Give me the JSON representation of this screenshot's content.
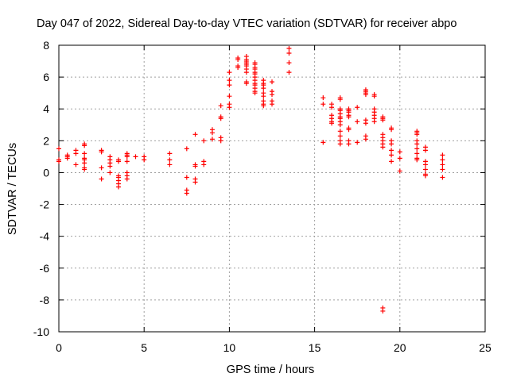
{
  "chart_data": {
    "type": "scatter",
    "title": "Day 047 of 2022, Sidereal Day-to-day VTEC variation (SDTVAR) for receiver abpo",
    "xlabel": "GPS time / hours",
    "ylabel": "SDTVAR / TECUs",
    "xlim": [
      0,
      25
    ],
    "ylim": [
      -10,
      8
    ],
    "xticks": [
      0,
      5,
      10,
      15,
      20,
      25
    ],
    "yticks": [
      -10,
      -8,
      -6,
      -4,
      -2,
      0,
      2,
      4,
      6,
      8
    ],
    "grid": true,
    "marker": "plus",
    "color": "#ff0000",
    "series": [
      {
        "name": "SDTVAR",
        "points": [
          [
            0.0,
            0.7
          ],
          [
            0.0,
            0.8
          ],
          [
            0.0,
            1.5
          ],
          [
            0.5,
            0.9
          ],
          [
            0.5,
            1.1
          ],
          [
            0.5,
            1.0
          ],
          [
            1.0,
            1.2
          ],
          [
            1.0,
            1.4
          ],
          [
            1.0,
            0.5
          ],
          [
            1.5,
            1.8
          ],
          [
            1.5,
            1.7
          ],
          [
            1.5,
            1.2
          ],
          [
            1.5,
            0.9
          ],
          [
            1.5,
            0.8
          ],
          [
            1.5,
            0.6
          ],
          [
            1.5,
            0.3
          ],
          [
            1.5,
            0.2
          ],
          [
            2.5,
            1.4
          ],
          [
            2.5,
            1.3
          ],
          [
            2.5,
            0.3
          ],
          [
            2.5,
            -0.4
          ],
          [
            3.0,
            1.0
          ],
          [
            3.0,
            0.8
          ],
          [
            3.0,
            0.6
          ],
          [
            3.0,
            0.4
          ],
          [
            3.0,
            0.0
          ],
          [
            3.5,
            0.8
          ],
          [
            3.5,
            0.7
          ],
          [
            3.5,
            -0.2
          ],
          [
            3.5,
            -0.3
          ],
          [
            3.5,
            -0.5
          ],
          [
            3.5,
            -0.7
          ],
          [
            3.5,
            -0.9
          ],
          [
            4.0,
            1.2
          ],
          [
            4.0,
            1.1
          ],
          [
            4.0,
            1.0
          ],
          [
            4.0,
            0.7
          ],
          [
            4.0,
            0.0
          ],
          [
            4.0,
            -0.2
          ],
          [
            4.0,
            -0.4
          ],
          [
            4.5,
            1.0
          ],
          [
            5.0,
            1.0
          ],
          [
            5.0,
            0.8
          ],
          [
            6.5,
            1.2
          ],
          [
            6.5,
            0.8
          ],
          [
            6.5,
            0.5
          ],
          [
            7.5,
            1.5
          ],
          [
            7.5,
            -0.3
          ],
          [
            7.5,
            -1.1
          ],
          [
            7.5,
            -1.3
          ],
          [
            8.0,
            2.4
          ],
          [
            8.0,
            0.5
          ],
          [
            8.0,
            0.4
          ],
          [
            8.0,
            -0.4
          ],
          [
            8.0,
            -0.6
          ],
          [
            8.5,
            2.0
          ],
          [
            8.5,
            0.7
          ],
          [
            8.5,
            0.5
          ],
          [
            9.0,
            2.7
          ],
          [
            9.0,
            2.5
          ],
          [
            9.0,
            2.1
          ],
          [
            9.5,
            4.2
          ],
          [
            9.5,
            3.5
          ],
          [
            9.5,
            3.4
          ],
          [
            9.5,
            2.2
          ],
          [
            9.5,
            2.0
          ],
          [
            10.0,
            6.3
          ],
          [
            10.0,
            5.8
          ],
          [
            10.0,
            5.5
          ],
          [
            10.0,
            4.8
          ],
          [
            10.0,
            4.3
          ],
          [
            10.0,
            4.1
          ],
          [
            10.5,
            7.2
          ],
          [
            10.5,
            7.1
          ],
          [
            10.5,
            6.7
          ],
          [
            10.5,
            6.6
          ],
          [
            11.0,
            7.3
          ],
          [
            11.0,
            7.1
          ],
          [
            11.0,
            7.0
          ],
          [
            11.0,
            6.9
          ],
          [
            11.0,
            6.8
          ],
          [
            11.0,
            6.7
          ],
          [
            11.0,
            6.5
          ],
          [
            11.0,
            6.3
          ],
          [
            11.0,
            5.7
          ],
          [
            11.0,
            5.6
          ],
          [
            11.5,
            6.9
          ],
          [
            11.5,
            6.8
          ],
          [
            11.5,
            6.6
          ],
          [
            11.5,
            6.5
          ],
          [
            11.5,
            6.3
          ],
          [
            11.5,
            6.2
          ],
          [
            11.5,
            6.0
          ],
          [
            11.5,
            5.8
          ],
          [
            11.5,
            5.6
          ],
          [
            11.5,
            5.5
          ],
          [
            11.5,
            5.3
          ],
          [
            11.5,
            5.1
          ],
          [
            11.5,
            5.0
          ],
          [
            12.0,
            5.8
          ],
          [
            12.0,
            5.6
          ],
          [
            12.0,
            5.5
          ],
          [
            12.0,
            5.3
          ],
          [
            12.0,
            5.0
          ],
          [
            12.0,
            4.8
          ],
          [
            12.0,
            4.5
          ],
          [
            12.0,
            4.3
          ],
          [
            12.0,
            4.2
          ],
          [
            12.5,
            5.7
          ],
          [
            12.5,
            5.1
          ],
          [
            12.5,
            4.9
          ],
          [
            12.5,
            4.5
          ],
          [
            12.5,
            4.3
          ],
          [
            13.5,
            7.8
          ],
          [
            13.5,
            7.5
          ],
          [
            13.5,
            6.9
          ],
          [
            13.5,
            6.3
          ],
          [
            15.5,
            4.7
          ],
          [
            15.5,
            4.3
          ],
          [
            15.5,
            1.9
          ],
          [
            16.0,
            4.3
          ],
          [
            16.0,
            4.1
          ],
          [
            16.0,
            3.6
          ],
          [
            16.0,
            3.4
          ],
          [
            16.0,
            3.2
          ],
          [
            16.0,
            3.1
          ],
          [
            16.5,
            4.7
          ],
          [
            16.5,
            4.6
          ],
          [
            16.5,
            4.0
          ],
          [
            16.5,
            3.9
          ],
          [
            16.5,
            3.7
          ],
          [
            16.5,
            3.5
          ],
          [
            16.5,
            3.4
          ],
          [
            16.5,
            3.2
          ],
          [
            16.5,
            3.0
          ],
          [
            16.5,
            2.6
          ],
          [
            16.5,
            2.3
          ],
          [
            16.5,
            2.0
          ],
          [
            16.5,
            1.8
          ],
          [
            17.0,
            4.0
          ],
          [
            17.0,
            3.9
          ],
          [
            17.0,
            3.8
          ],
          [
            17.0,
            3.6
          ],
          [
            17.0,
            3.5
          ],
          [
            17.0,
            2.8
          ],
          [
            17.0,
            2.7
          ],
          [
            17.0,
            2.0
          ],
          [
            17.0,
            1.8
          ],
          [
            17.5,
            4.1
          ],
          [
            17.5,
            3.2
          ],
          [
            17.5,
            1.9
          ],
          [
            18.0,
            5.2
          ],
          [
            18.0,
            5.1
          ],
          [
            18.0,
            5.0
          ],
          [
            18.0,
            4.9
          ],
          [
            18.0,
            3.3
          ],
          [
            18.0,
            3.1
          ],
          [
            18.0,
            2.3
          ],
          [
            18.0,
            2.1
          ],
          [
            18.5,
            4.9
          ],
          [
            18.5,
            4.8
          ],
          [
            18.5,
            4.0
          ],
          [
            18.5,
            3.8
          ],
          [
            18.5,
            3.6
          ],
          [
            18.5,
            3.4
          ],
          [
            18.5,
            3.2
          ],
          [
            19.0,
            3.5
          ],
          [
            19.0,
            3.4
          ],
          [
            19.0,
            3.3
          ],
          [
            19.0,
            2.4
          ],
          [
            19.0,
            2.2
          ],
          [
            19.0,
            2.0
          ],
          [
            19.0,
            1.8
          ],
          [
            19.0,
            1.6
          ],
          [
            19.0,
            -8.5
          ],
          [
            19.0,
            -8.7
          ],
          [
            19.5,
            2.8
          ],
          [
            19.5,
            2.7
          ],
          [
            19.5,
            2.0
          ],
          [
            19.5,
            1.8
          ],
          [
            19.5,
            1.4
          ],
          [
            19.5,
            1.1
          ],
          [
            19.5,
            0.7
          ],
          [
            20.0,
            1.3
          ],
          [
            20.0,
            0.9
          ],
          [
            20.0,
            0.1
          ],
          [
            21.0,
            2.6
          ],
          [
            21.0,
            2.5
          ],
          [
            21.0,
            2.4
          ],
          [
            21.0,
            2.0
          ],
          [
            21.0,
            1.8
          ],
          [
            21.0,
            1.5
          ],
          [
            21.0,
            1.2
          ],
          [
            21.0,
            0.9
          ],
          [
            21.0,
            0.8
          ],
          [
            21.5,
            1.6
          ],
          [
            21.5,
            1.4
          ],
          [
            21.5,
            0.7
          ],
          [
            21.5,
            0.5
          ],
          [
            21.5,
            0.2
          ],
          [
            21.5,
            -0.1
          ],
          [
            21.5,
            -0.2
          ],
          [
            22.5,
            1.1
          ],
          [
            22.5,
            0.8
          ],
          [
            22.5,
            0.5
          ],
          [
            22.5,
            0.2
          ],
          [
            22.5,
            -0.3
          ]
        ]
      }
    ]
  }
}
